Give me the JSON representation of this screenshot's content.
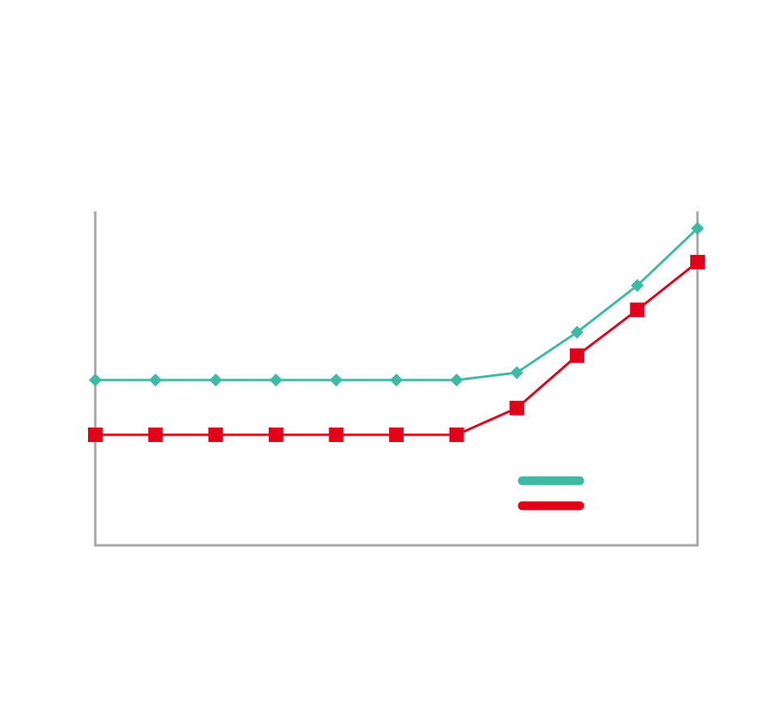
{
  "chart_data": {
    "type": "line",
    "categories": [
      null,
      null,
      null,
      null,
      null,
      null,
      null,
      null,
      null,
      null,
      null
    ],
    "series": [
      {
        "color": "#3dbaa4",
        "marker": "diamond",
        "values": [
          49.5,
          49.5,
          49.5,
          49.5,
          49.5,
          49.5,
          49.5,
          51.7,
          63.8,
          77.8,
          94.9
        ]
      },
      {
        "color": "#e3001b",
        "marker": "square",
        "values": [
          33.1,
          33.1,
          33.1,
          33.1,
          33.1,
          33.1,
          33.1,
          41.1,
          56.8,
          70.5,
          84.8
        ]
      }
    ],
    "ylim": [
      0,
      100
    ],
    "legend": "lower right"
  }
}
